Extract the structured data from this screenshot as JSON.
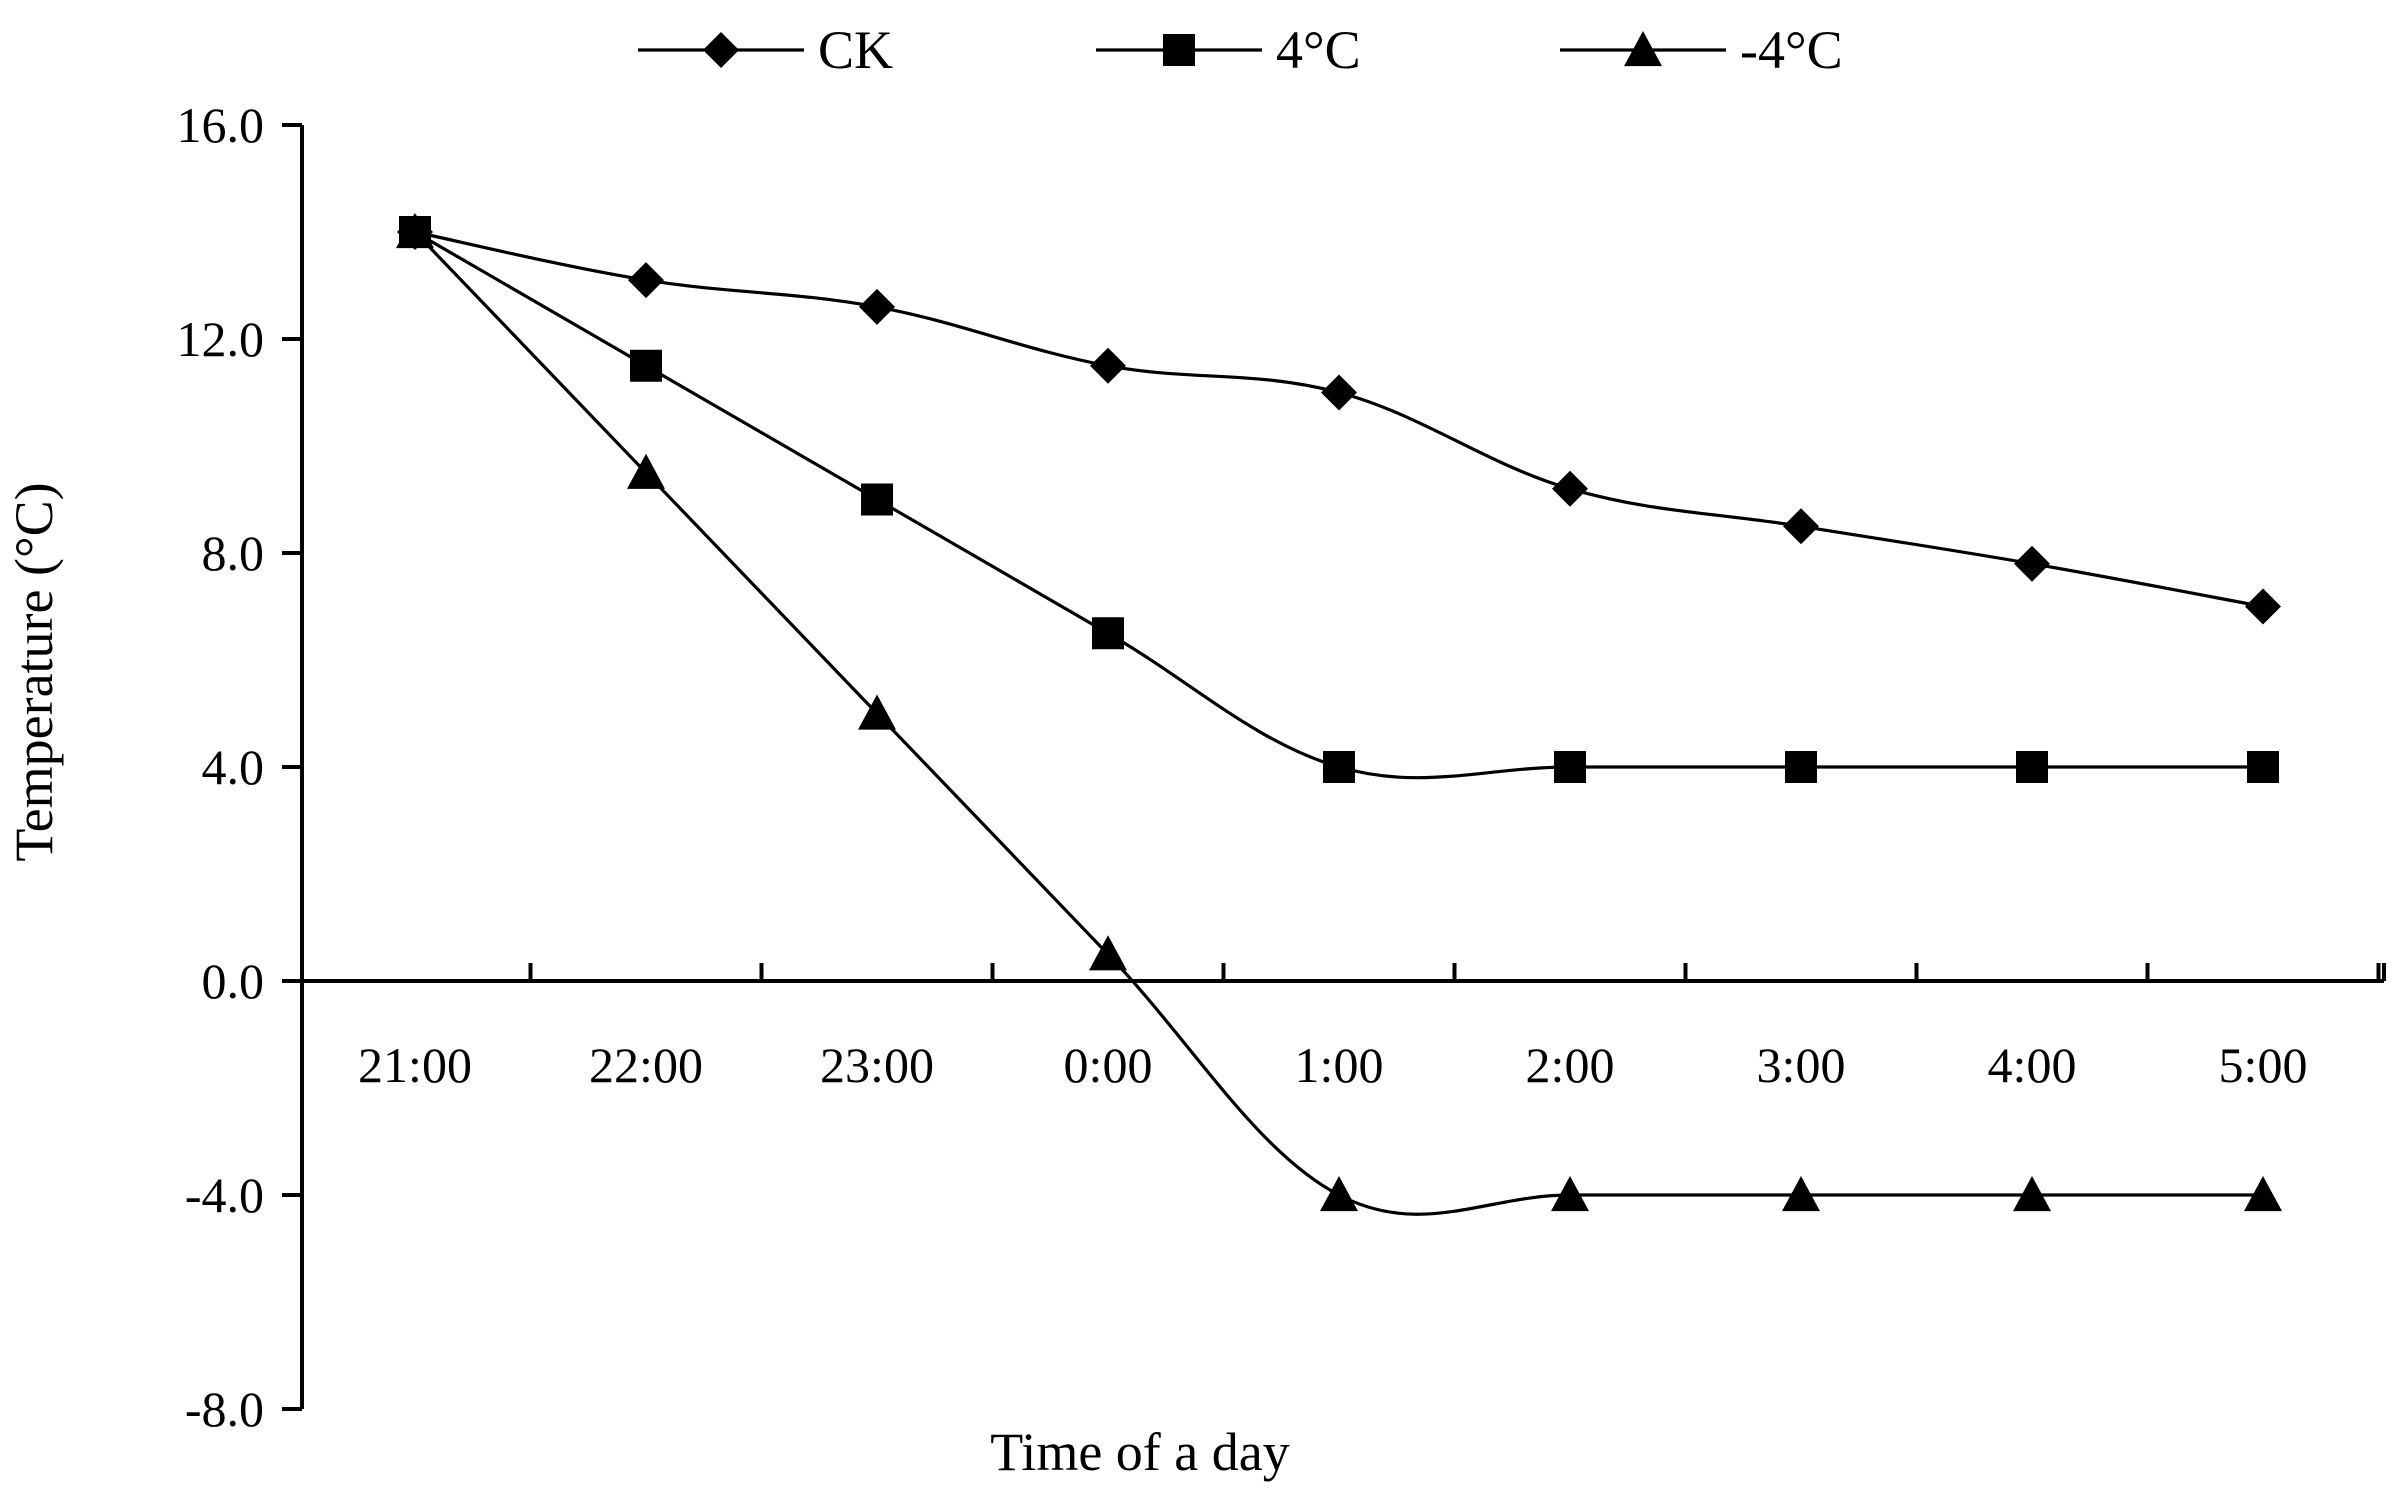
{
  "chart_data": {
    "type": "line",
    "title": "",
    "xlabel": "Time of a day",
    "ylabel": "Temperature (°C)",
    "categories": [
      "21:00",
      "22:00",
      "23:00",
      "0:00",
      "1:00",
      "2:00",
      "3:00",
      "4:00",
      "5:00"
    ],
    "yticks": [
      "16.0",
      "12.0",
      "8.0",
      "4.0",
      "0.0",
      "-4.0",
      "-8.0"
    ],
    "ylim": [
      -8,
      16
    ],
    "grid": false,
    "smooth": true,
    "legend_position": "top",
    "series": [
      {
        "name": "CK",
        "marker": "diamond",
        "values": [
          14.0,
          13.1,
          12.6,
          11.5,
          11.0,
          9.2,
          8.5,
          7.8,
          7.0
        ]
      },
      {
        "name": "4°C",
        "marker": "square",
        "values": [
          14.0,
          11.5,
          9.0,
          6.5,
          4.0,
          4.0,
          4.0,
          4.0,
          4.0
        ]
      },
      {
        "name": "-4°C",
        "marker": "triangle",
        "values": [
          14.0,
          9.5,
          5.0,
          0.5,
          -4.0,
          -4.0,
          -4.0,
          -4.0,
          -4.0
        ]
      }
    ]
  }
}
